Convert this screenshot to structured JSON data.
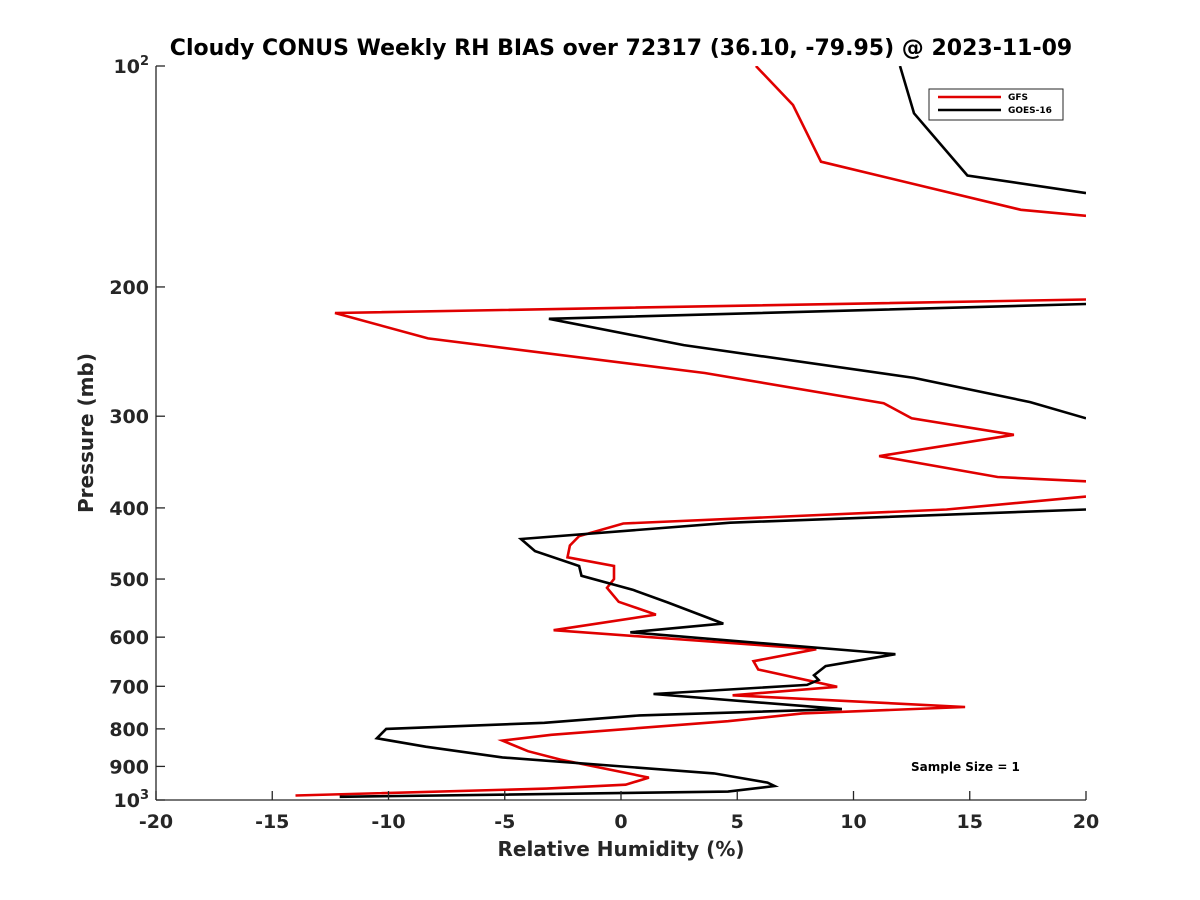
{
  "chart_data": {
    "type": "line",
    "title": "Cloudy CONUS Weekly RH BIAS over 72317 (36.10, -79.95) @ 2023-11-09",
    "xlabel": "Relative Humidity (%)",
    "ylabel": "Pressure (mb)",
    "xlim": [
      -20,
      20
    ],
    "ylim": [
      100,
      1000
    ],
    "y_scale": "log",
    "y_reversed": true,
    "x_ticks": [
      "-20",
      "-15",
      "-10",
      "-5",
      "0",
      "5",
      "10",
      "15",
      "20"
    ],
    "y_ticks": [
      {
        "value": 100,
        "base": "10",
        "sup": "2"
      },
      {
        "value": 200,
        "base": "200",
        "sup": ""
      },
      {
        "value": 300,
        "base": "300",
        "sup": ""
      },
      {
        "value": 400,
        "base": "400",
        "sup": ""
      },
      {
        "value": 500,
        "base": "500",
        "sup": ""
      },
      {
        "value": 600,
        "base": "600",
        "sup": ""
      },
      {
        "value": 700,
        "base": "700",
        "sup": ""
      },
      {
        "value": 800,
        "base": "800",
        "sup": ""
      },
      {
        "value": 900,
        "base": "900",
        "sup": ""
      },
      {
        "value": 1000,
        "base": "10",
        "sup": "3"
      }
    ],
    "legend_position": "top-right",
    "grid": false,
    "annotation": "Sample Size = 1",
    "series": [
      {
        "name": "GFS",
        "color": "#e00000",
        "points": [
          [
            5.8,
            100
          ],
          [
            7.4,
            113
          ],
          [
            8.6,
            135
          ],
          [
            17.2,
            157
          ],
          [
            20,
            160
          ],
          null,
          [
            20,
            208
          ],
          [
            -12.3,
            217
          ],
          [
            -8.3,
            235
          ],
          [
            3.6,
            262
          ],
          [
            11.3,
            288
          ],
          [
            12.5,
            302
          ],
          [
            16.9,
            318
          ],
          [
            11.1,
            340
          ],
          [
            16.2,
            363
          ],
          [
            20,
            368
          ],
          null,
          [
            20,
            386
          ],
          [
            14.0,
            402
          ],
          [
            0.1,
            420
          ],
          [
            -1.8,
            437
          ],
          [
            -2.2,
            450
          ],
          [
            -2.3,
            467
          ],
          [
            -0.3,
            480
          ],
          [
            -0.3,
            500
          ],
          [
            -0.6,
            514
          ],
          [
            -0.1,
            537
          ],
          [
            1.5,
            559
          ],
          [
            -2.9,
            587
          ],
          [
            8.4,
            623
          ],
          [
            5.7,
            647
          ],
          [
            5.9,
            664
          ],
          [
            9.3,
            701
          ],
          [
            4.8,
            720
          ],
          [
            14.8,
            747
          ],
          [
            7.8,
            762
          ],
          [
            4.6,
            781
          ],
          [
            -3.0,
            815
          ],
          [
            -5.1,
            830
          ],
          [
            -4.0,
            858
          ],
          [
            -2.6,
            881
          ],
          [
            1.2,
            932
          ],
          [
            0.2,
            953
          ],
          [
            -3.2,
            965
          ],
          [
            -14.0,
            986
          ]
        ]
      },
      {
        "name": "GOES-16",
        "color": "#000000",
        "points": [
          [
            12.0,
            100
          ],
          [
            12.6,
            116
          ],
          [
            14.9,
            141
          ],
          [
            20,
            149
          ],
          null,
          [
            20,
            211
          ],
          [
            -3.1,
            221
          ],
          [
            2.7,
            240
          ],
          [
            12.6,
            266
          ],
          [
            17.6,
            287
          ],
          [
            20,
            302
          ],
          null,
          [
            20,
            402
          ],
          [
            4.7,
            419
          ],
          [
            -4.3,
            441
          ],
          [
            -3.7,
            458
          ],
          [
            -1.8,
            480
          ],
          [
            -1.7,
            495
          ],
          [
            0.5,
            517
          ],
          [
            2.0,
            538
          ],
          [
            4.4,
            575
          ],
          [
            0.4,
            591
          ],
          [
            11.8,
            633
          ],
          [
            8.8,
            657
          ],
          [
            8.3,
            676
          ],
          [
            8.5,
            686
          ],
          [
            8.0,
            697
          ],
          [
            1.4,
            717
          ],
          [
            9.5,
            752
          ],
          [
            0.8,
            767
          ],
          [
            -3.3,
            785
          ],
          [
            -10.1,
            800
          ],
          [
            -10.5,
            824
          ],
          [
            -8.4,
            846
          ],
          [
            -5.1,
            875
          ],
          [
            4.0,
            920
          ],
          [
            6.3,
            947
          ],
          [
            6.6,
            957
          ],
          [
            4.6,
            974
          ],
          [
            -12.1,
            990
          ]
        ]
      }
    ]
  }
}
